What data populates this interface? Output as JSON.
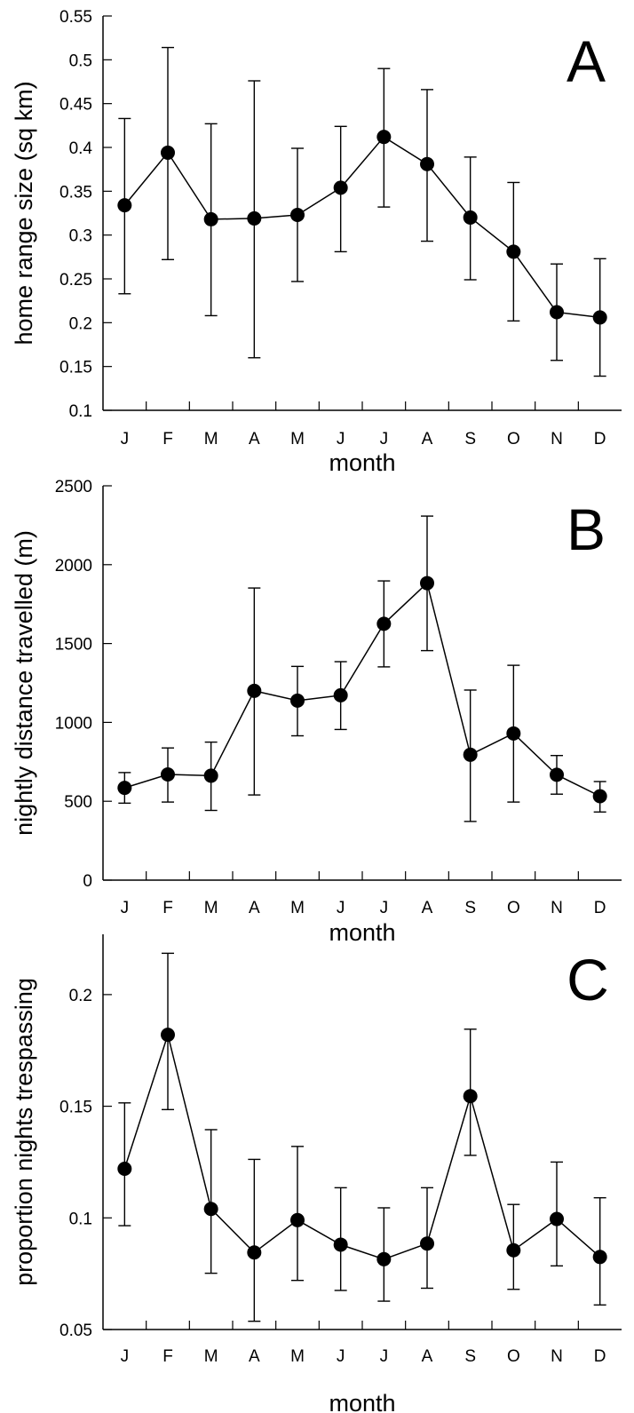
{
  "chart_data": [
    {
      "type": "line",
      "panel_label": "A",
      "title": "",
      "xlabel": "month",
      "ylabel": "home range size (sq km)",
      "categories": [
        "J",
        "F",
        "M",
        "A",
        "M",
        "J",
        "J",
        "A",
        "S",
        "O",
        "N",
        "D"
      ],
      "values": [
        0.334,
        0.394,
        0.318,
        0.319,
        0.323,
        0.354,
        0.412,
        0.381,
        0.32,
        0.281,
        0.212,
        0.206
      ],
      "error_low": [
        0.233,
        0.272,
        0.208,
        0.16,
        0.247,
        0.281,
        0.332,
        0.293,
        0.249,
        0.202,
        0.157,
        0.139
      ],
      "error_high": [
        0.433,
        0.514,
        0.427,
        0.476,
        0.399,
        0.424,
        0.49,
        0.466,
        0.389,
        0.36,
        0.267,
        0.273
      ],
      "ylim": [
        0.1,
        0.55
      ],
      "yticks": [
        0.1,
        0.15,
        0.2,
        0.25,
        0.3,
        0.35,
        0.4,
        0.45,
        0.5,
        0.55
      ],
      "ytick_labels": [
        "0.1",
        "0.15",
        "0.2",
        "0.25",
        "0.3",
        "0.35",
        "0.4",
        "0.45",
        "0.5",
        "0.55"
      ],
      "grid": false
    },
    {
      "type": "line",
      "panel_label": "B",
      "title": "",
      "xlabel": "month",
      "ylabel": "nightly distance travelled (m)",
      "categories": [
        "J",
        "F",
        "M",
        "A",
        "M",
        "J",
        "J",
        "A",
        "S",
        "O",
        "N",
        "D"
      ],
      "values": [
        585,
        670,
        662,
        1200,
        1138,
        1172,
        1625,
        1883,
        795,
        930,
        668,
        532
      ],
      "error_low": [
        488,
        495,
        442,
        540,
        915,
        955,
        1352,
        1455,
        372,
        495,
        545,
        432
      ],
      "error_high": [
        682,
        838,
        875,
        1852,
        1355,
        1385,
        1897,
        2308,
        1205,
        1362,
        790,
        625
      ],
      "ylim": [
        0,
        2500
      ],
      "yticks": [
        0,
        500,
        1000,
        1500,
        2000,
        2500
      ],
      "ytick_labels": [
        "0",
        "500",
        "1000",
        "1500",
        "2000",
        "2500"
      ],
      "grid": false
    },
    {
      "type": "line",
      "panel_label": "C",
      "title": "",
      "xlabel": "month",
      "ylabel": "proportion nights trespassing",
      "categories": [
        "J",
        "F",
        "M",
        "A",
        "M",
        "J",
        "J",
        "A",
        "S",
        "O",
        "N",
        "D"
      ],
      "values": [
        0.122,
        0.182,
        0.104,
        0.0845,
        0.099,
        0.088,
        0.0815,
        0.0885,
        0.1545,
        0.0855,
        0.0995,
        0.0825
      ],
      "error_low": [
        0.0965,
        0.1485,
        0.0752,
        0.0537,
        0.072,
        0.0675,
        0.0627,
        0.0685,
        0.128,
        0.068,
        0.0785,
        0.061
      ],
      "error_high": [
        0.1515,
        0.2185,
        0.1395,
        0.1262,
        0.132,
        0.1135,
        0.1045,
        0.1135,
        0.1845,
        0.106,
        0.125,
        0.109
      ],
      "ylim": [
        0.05,
        0.227
      ],
      "yticks": [
        0.05,
        0.1,
        0.15,
        0.2
      ],
      "ytick_labels": [
        "0.05",
        "0.1",
        "0.15",
        "0.2"
      ],
      "grid": false
    }
  ]
}
